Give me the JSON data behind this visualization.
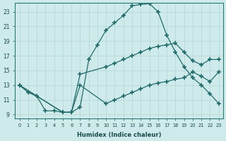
{
  "xlabel": "Humidex (Indice chaleur)",
  "xlim": [
    -0.5,
    23.5
  ],
  "ylim": [
    8.5,
    24.2
  ],
  "yticks": [
    9,
    11,
    13,
    15,
    17,
    19,
    21,
    23
  ],
  "xticks": [
    0,
    1,
    2,
    3,
    4,
    5,
    6,
    7,
    8,
    9,
    10,
    11,
    12,
    13,
    14,
    15,
    16,
    17,
    18,
    19,
    20,
    21,
    22,
    23
  ],
  "bg_color": "#ceeaea",
  "line_color": "#216b6b",
  "grid_color": "#b8d8d8",
  "curve1_x": [
    0,
    1,
    2,
    3,
    4,
    5,
    6,
    7,
    8,
    9,
    10,
    11,
    12,
    13,
    14,
    15,
    16,
    17,
    18,
    19,
    20,
    21,
    22,
    23
  ],
  "curve1_y": [
    13,
    12,
    11.5,
    9.5,
    9.5,
    9.3,
    9.3,
    10.0,
    16.5,
    18.5,
    20.5,
    21.5,
    22.5,
    23.8,
    24.0,
    24.1,
    23.0,
    19.8,
    17.5,
    15.5,
    14.0,
    13.0,
    11.8,
    10.5
  ],
  "curve2_x": [
    0,
    5,
    6,
    7,
    10,
    11,
    12,
    13,
    14,
    15,
    16,
    17,
    18,
    19,
    20,
    21,
    22,
    23
  ],
  "curve2_y": [
    13,
    9.3,
    9.3,
    14.5,
    15.5,
    16.0,
    16.5,
    17.0,
    17.5,
    18.0,
    18.3,
    18.5,
    18.7,
    17.5,
    16.3,
    15.8,
    16.5,
    16.5
  ],
  "curve3_x": [
    0,
    5,
    6,
    7,
    10,
    11,
    12,
    13,
    14,
    15,
    16,
    17,
    18,
    19,
    20,
    21,
    22,
    23
  ],
  "curve3_y": [
    13,
    9.3,
    9.3,
    13.0,
    10.5,
    11.0,
    11.5,
    12.0,
    12.5,
    13.0,
    13.3,
    13.5,
    13.8,
    14.0,
    14.8,
    14.2,
    13.5,
    14.8
  ]
}
